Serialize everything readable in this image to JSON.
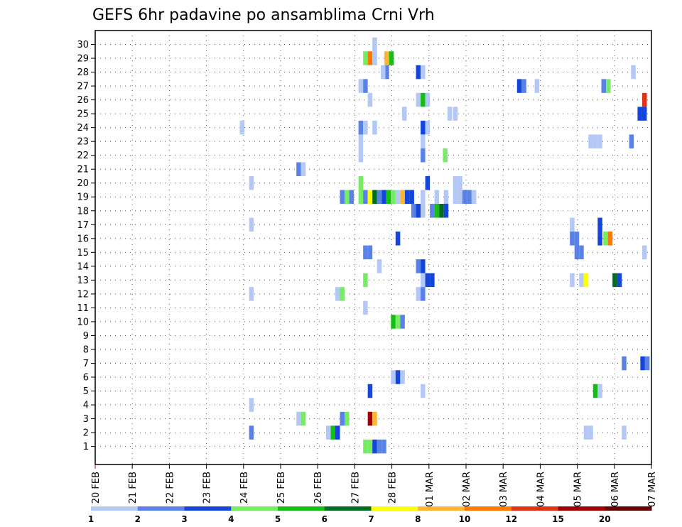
{
  "chart_data": {
    "type": "heatmap",
    "title": "GEFS 6hr padavine po ansamblima Crni Vrh",
    "xlabel": "",
    "ylabel": "",
    "x_tick_labels": [
      "20 FEB",
      "21 FEB",
      "22 FEB",
      "23 FEB",
      "24 FEB",
      "25 FEB",
      "26 FEB",
      "27 FEB",
      "28 FEB",
      "01 MAR",
      "02 MAR",
      "03 MAR",
      "04 MAR",
      "05 MAR",
      "06 MAR",
      "07 MAR"
    ],
    "y_tick_labels": [
      "1",
      "2",
      "3",
      "4",
      "5",
      "6",
      "7",
      "8",
      "9",
      "10",
      "11",
      "12",
      "13",
      "14",
      "15",
      "16",
      "17",
      "18",
      "19",
      "20",
      "21",
      "22",
      "23",
      "24",
      "25",
      "26",
      "27",
      "28",
      "29",
      "30"
    ],
    "xlim": [
      0,
      60
    ],
    "ylim": [
      0,
      30
    ],
    "grid": true,
    "colorbar": {
      "labels": [
        "1",
        "2",
        "3",
        "4",
        "5",
        "6",
        "7",
        "8",
        "10",
        "12",
        "15",
        "20"
      ],
      "colors": [
        "#b4c8f5",
        "#5a82e6",
        "#1446dc",
        "#78eb64",
        "#14be14",
        "#006e1e",
        "#ffff00",
        "#ffb432",
        "#ff7800",
        "#e63214",
        "#a00000",
        "#640000"
      ]
    },
    "colors": {
      "c1": "#b4c8f5",
      "c2": "#5a82e6",
      "c3": "#1446dc",
      "c4": "#78eb64",
      "c5": "#14be14",
      "c6": "#006e1e",
      "c7": "#ffff00",
      "c8": "#ffb432",
      "c10": "#ff7800",
      "c12": "#e63214",
      "c15": "#a00000",
      "c20": "#640000"
    },
    "cells": [
      {
        "x": 29.9,
        "y": 30,
        "v": 1
      },
      {
        "x": 28.9,
        "y": 29,
        "v": 4
      },
      {
        "x": 29.4,
        "y": 29,
        "v": 10
      },
      {
        "x": 29.9,
        "y": 29,
        "v": 1
      },
      {
        "x": 31.2,
        "y": 29,
        "v": 8
      },
      {
        "x": 31.7,
        "y": 29,
        "v": 5
      },
      {
        "x": 31.2,
        "y": 28,
        "v": 2
      },
      {
        "x": 30.8,
        "y": 28,
        "v": 1
      },
      {
        "x": 34.6,
        "y": 28,
        "v": 3
      },
      {
        "x": 35.1,
        "y": 28,
        "v": 1
      },
      {
        "x": 57.8,
        "y": 28,
        "v": 1
      },
      {
        "x": 28.4,
        "y": 27,
        "v": 1
      },
      {
        "x": 28.9,
        "y": 27,
        "v": 2
      },
      {
        "x": 45.5,
        "y": 27,
        "v": 3
      },
      {
        "x": 46.0,
        "y": 27,
        "v": 2
      },
      {
        "x": 47.4,
        "y": 27,
        "v": 1
      },
      {
        "x": 54.6,
        "y": 27,
        "v": 2
      },
      {
        "x": 55.1,
        "y": 27,
        "v": 4
      },
      {
        "x": 29.4,
        "y": 26,
        "v": 1
      },
      {
        "x": 34.6,
        "y": 26,
        "v": 1
      },
      {
        "x": 35.1,
        "y": 26,
        "v": 5
      },
      {
        "x": 35.6,
        "y": 26,
        "v": 1
      },
      {
        "x": 59.0,
        "y": 26,
        "v": 12
      },
      {
        "x": 33.1,
        "y": 25,
        "v": 1
      },
      {
        "x": 38.0,
        "y": 25,
        "v": 1
      },
      {
        "x": 38.6,
        "y": 25,
        "v": 1
      },
      {
        "x": 58.5,
        "y": 25,
        "v": 3
      },
      {
        "x": 59.0,
        "y": 25,
        "v": 3
      },
      {
        "x": 15.6,
        "y": 24,
        "v": 1
      },
      {
        "x": 28.4,
        "y": 24,
        "v": 2
      },
      {
        "x": 28.9,
        "y": 24,
        "v": 1
      },
      {
        "x": 29.9,
        "y": 24,
        "v": 1
      },
      {
        "x": 35.1,
        "y": 24,
        "v": 3
      },
      {
        "x": 35.6,
        "y": 24,
        "v": 1
      },
      {
        "x": 28.4,
        "y": 23,
        "v": 1
      },
      {
        "x": 35.1,
        "y": 23,
        "v": 1
      },
      {
        "x": 53.2,
        "y": 23,
        "v": 1
      },
      {
        "x": 53.7,
        "y": 23,
        "v": 1
      },
      {
        "x": 54.2,
        "y": 23,
        "v": 1
      },
      {
        "x": 57.6,
        "y": 23,
        "v": 2
      },
      {
        "x": 28.4,
        "y": 22,
        "v": 1
      },
      {
        "x": 35.1,
        "y": 22,
        "v": 2
      },
      {
        "x": 37.5,
        "y": 22,
        "v": 4
      },
      {
        "x": 21.7,
        "y": 21,
        "v": 2
      },
      {
        "x": 22.2,
        "y": 21,
        "v": 1
      },
      {
        "x": 16.6,
        "y": 20,
        "v": 1
      },
      {
        "x": 28.4,
        "y": 20,
        "v": 4
      },
      {
        "x": 35.6,
        "y": 20,
        "v": 3
      },
      {
        "x": 38.6,
        "y": 20,
        "v": 1
      },
      {
        "x": 39.1,
        "y": 20,
        "v": 1
      },
      {
        "x": 26.4,
        "y": 19,
        "v": 2
      },
      {
        "x": 26.9,
        "y": 19,
        "v": 4
      },
      {
        "x": 27.4,
        "y": 19,
        "v": 2
      },
      {
        "x": 28.4,
        "y": 19,
        "v": 4
      },
      {
        "x": 28.9,
        "y": 19,
        "v": 2
      },
      {
        "x": 29.4,
        "y": 19,
        "v": 7
      },
      {
        "x": 29.9,
        "y": 19,
        "v": 6
      },
      {
        "x": 30.4,
        "y": 19,
        "v": 2
      },
      {
        "x": 30.9,
        "y": 19,
        "v": 3
      },
      {
        "x": 31.4,
        "y": 19,
        "v": 5
      },
      {
        "x": 31.9,
        "y": 19,
        "v": 4
      },
      {
        "x": 32.4,
        "y": 19,
        "v": 1
      },
      {
        "x": 32.9,
        "y": 19,
        "v": 8
      },
      {
        "x": 33.4,
        "y": 19,
        "v": 3
      },
      {
        "x": 33.9,
        "y": 19,
        "v": 3
      },
      {
        "x": 35.1,
        "y": 19,
        "v": 1
      },
      {
        "x": 36.6,
        "y": 19,
        "v": 1
      },
      {
        "x": 37.6,
        "y": 19,
        "v": 1
      },
      {
        "x": 38.6,
        "y": 19,
        "v": 1
      },
      {
        "x": 39.1,
        "y": 19,
        "v": 1
      },
      {
        "x": 39.6,
        "y": 19,
        "v": 2
      },
      {
        "x": 40.1,
        "y": 19,
        "v": 2
      },
      {
        "x": 40.6,
        "y": 19,
        "v": 1
      },
      {
        "x": 34.1,
        "y": 18,
        "v": 2
      },
      {
        "x": 34.6,
        "y": 18,
        "v": 3
      },
      {
        "x": 35.1,
        "y": 18,
        "v": 1
      },
      {
        "x": 36.1,
        "y": 18,
        "v": 2
      },
      {
        "x": 36.6,
        "y": 18,
        "v": 5
      },
      {
        "x": 37.1,
        "y": 18,
        "v": 6
      },
      {
        "x": 37.6,
        "y": 18,
        "v": 3
      },
      {
        "x": 16.6,
        "y": 17,
        "v": 1
      },
      {
        "x": 51.2,
        "y": 17,
        "v": 1
      },
      {
        "x": 54.2,
        "y": 17,
        "v": 3
      },
      {
        "x": 32.4,
        "y": 16,
        "v": 3
      },
      {
        "x": 51.2,
        "y": 16,
        "v": 2
      },
      {
        "x": 51.7,
        "y": 16,
        "v": 2
      },
      {
        "x": 54.2,
        "y": 16,
        "v": 3
      },
      {
        "x": 54.8,
        "y": 16,
        "v": 4
      },
      {
        "x": 55.3,
        "y": 16,
        "v": 10
      },
      {
        "x": 28.9,
        "y": 15,
        "v": 2
      },
      {
        "x": 29.4,
        "y": 15,
        "v": 2
      },
      {
        "x": 51.7,
        "y": 15,
        "v": 2
      },
      {
        "x": 52.2,
        "y": 15,
        "v": 2
      },
      {
        "x": 59.0,
        "y": 15,
        "v": 1
      },
      {
        "x": 30.4,
        "y": 14,
        "v": 1
      },
      {
        "x": 34.6,
        "y": 14,
        "v": 2
      },
      {
        "x": 35.1,
        "y": 14,
        "v": 3
      },
      {
        "x": 28.9,
        "y": 13,
        "v": 4
      },
      {
        "x": 35.1,
        "y": 13,
        "v": 1
      },
      {
        "x": 35.6,
        "y": 13,
        "v": 3
      },
      {
        "x": 36.1,
        "y": 13,
        "v": 3
      },
      {
        "x": 51.2,
        "y": 13,
        "v": 1
      },
      {
        "x": 52.2,
        "y": 13,
        "v": 1
      },
      {
        "x": 52.7,
        "y": 13,
        "v": 7
      },
      {
        "x": 55.8,
        "y": 13,
        "v": 6
      },
      {
        "x": 56.3,
        "y": 13,
        "v": 3
      },
      {
        "x": 16.6,
        "y": 12,
        "v": 1
      },
      {
        "x": 25.9,
        "y": 12,
        "v": 1
      },
      {
        "x": 26.4,
        "y": 12,
        "v": 4
      },
      {
        "x": 34.6,
        "y": 12,
        "v": 1
      },
      {
        "x": 35.1,
        "y": 12,
        "v": 2
      },
      {
        "x": 28.9,
        "y": 11,
        "v": 1
      },
      {
        "x": 31.9,
        "y": 10,
        "v": 5
      },
      {
        "x": 32.4,
        "y": 10,
        "v": 4
      },
      {
        "x": 32.9,
        "y": 10,
        "v": 2
      },
      {
        "x": 31.9,
        "y": 6,
        "v": 1
      },
      {
        "x": 32.4,
        "y": 6,
        "v": 3
      },
      {
        "x": 32.9,
        "y": 6,
        "v": 1
      },
      {
        "x": 56.8,
        "y": 7,
        "v": 2
      },
      {
        "x": 58.8,
        "y": 7,
        "v": 3
      },
      {
        "x": 59.3,
        "y": 7,
        "v": 2
      },
      {
        "x": 29.4,
        "y": 5,
        "v": 3
      },
      {
        "x": 35.1,
        "y": 5,
        "v": 1
      },
      {
        "x": 53.7,
        "y": 5,
        "v": 5
      },
      {
        "x": 54.2,
        "y": 5,
        "v": 1
      },
      {
        "x": 16.6,
        "y": 4,
        "v": 1
      },
      {
        "x": 21.7,
        "y": 3,
        "v": 1
      },
      {
        "x": 22.2,
        "y": 3,
        "v": 4
      },
      {
        "x": 26.4,
        "y": 3,
        "v": 2
      },
      {
        "x": 26.9,
        "y": 3,
        "v": 4
      },
      {
        "x": 29.4,
        "y": 3,
        "v": 15
      },
      {
        "x": 29.9,
        "y": 3,
        "v": 8
      },
      {
        "x": 16.6,
        "y": 2,
        "v": 2
      },
      {
        "x": 24.9,
        "y": 2,
        "v": 1
      },
      {
        "x": 25.4,
        "y": 2,
        "v": 5
      },
      {
        "x": 25.9,
        "y": 2,
        "v": 3
      },
      {
        "x": 52.7,
        "y": 2,
        "v": 1
      },
      {
        "x": 53.2,
        "y": 2,
        "v": 1
      },
      {
        "x": 56.8,
        "y": 2,
        "v": 1
      },
      {
        "x": 28.9,
        "y": 1,
        "v": 4
      },
      {
        "x": 29.4,
        "y": 1,
        "v": 4
      },
      {
        "x": 29.9,
        "y": 1,
        "v": 3
      },
      {
        "x": 30.4,
        "y": 1,
        "v": 2
      },
      {
        "x": 30.9,
        "y": 1,
        "v": 2
      }
    ]
  }
}
